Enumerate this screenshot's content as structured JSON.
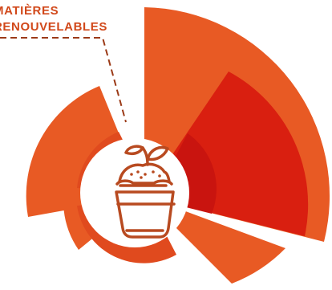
{
  "chart_data": {
    "type": "radial",
    "annotations": [
      {
        "line1": "MATIÈRES",
        "line2": "RENOUVELABLES"
      }
    ],
    "colors": {
      "main": "#e85a24",
      "accent": "#d91f10",
      "inner_ring": "#e04a1e",
      "inner_ring_accent": "#c9140f",
      "icon": "#b84a20",
      "label": "#d1481a",
      "leader": "#9b3a17"
    },
    "icon": "bucket-with-sprouting-plant-icon"
  }
}
